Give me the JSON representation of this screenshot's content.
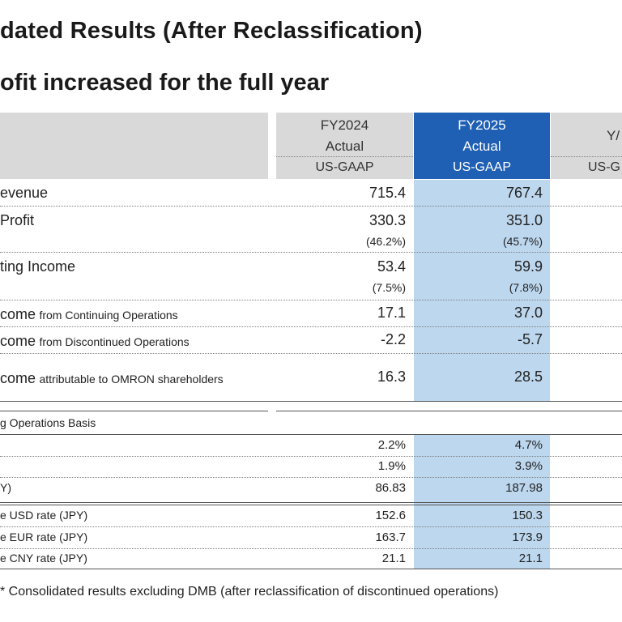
{
  "title": "dated Results (After Reclassification)",
  "subtitle": "ofit increased for the full year",
  "columns": [
    {
      "line1": "FY2024",
      "line2": "Actual",
      "basis": "US-GAAP"
    },
    {
      "line1": "FY2025",
      "line2": "Actual",
      "basis": "US-GAAP"
    },
    {
      "line1": "Y/",
      "line2": "",
      "basis": "US-G"
    }
  ],
  "rows": [
    {
      "label_main": "evenue",
      "label_sub": "",
      "fy2024": "715.4",
      "fy2025": "767.4"
    },
    {
      "label_main": "Profit",
      "label_sub": "",
      "fy2024": "330.3",
      "fy2025": "351.0",
      "fy2024_pct": "(46.2%)",
      "fy2025_pct": "(45.7%)"
    },
    {
      "label_main": "ting Income",
      "label_sub": "",
      "fy2024": "53.4",
      "fy2025": "59.9",
      "fy2024_pct": "(7.5%)",
      "fy2025_pct": "(7.8%)"
    },
    {
      "label_main": "come",
      "label_sub": "from Continuing Operations",
      "fy2024": "17.1",
      "fy2025": "37.0"
    },
    {
      "label_main": "come",
      "label_sub": "from Discontinued Operations",
      "fy2024": "-2.2",
      "fy2025": "-5.7"
    },
    {
      "label_main": "come",
      "label_sub": "attributable to OMRON shareholders",
      "fy2024": "16.3",
      "fy2025": "28.5"
    }
  ],
  "section_label": "g Operations Basis",
  "section_rows": [
    {
      "label": "",
      "fy2024": "2.2%",
      "fy2025": "4.7%"
    },
    {
      "label": "",
      "fy2024": "1.9%",
      "fy2025": "3.9%"
    },
    {
      "label": "Y)",
      "fy2024": "86.83",
      "fy2025": "187.98"
    }
  ],
  "fx_rows": [
    {
      "label": "e USD rate (JPY)",
      "fy2024": "152.6",
      "fy2025": "150.3"
    },
    {
      "label": "e EUR rate (JPY)",
      "fy2024": "163.7",
      "fy2025": "173.9"
    },
    {
      "label": "e CNY rate (JPY)",
      "fy2024": "21.1",
      "fy2025": "21.1"
    }
  ],
  "footnote": "* Consolidated results excluding DMB (after reclassification of discontinued operations)",
  "colors": {
    "header_gray": "#d9d9d9",
    "header_blue": "#1f5fb4",
    "highlight": "#bdd7ee"
  }
}
